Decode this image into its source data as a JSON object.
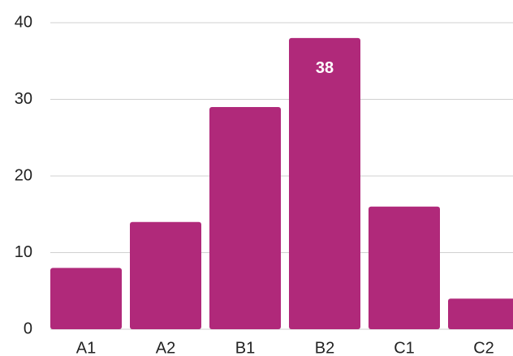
{
  "chart_data": {
    "type": "bar",
    "categories": [
      "A1",
      "A2",
      "B1",
      "B2",
      "C1",
      "C2"
    ],
    "values": [
      8,
      14,
      29,
      38,
      16,
      4
    ],
    "value_labels": [
      null,
      null,
      null,
      "38",
      null,
      null
    ],
    "color": "#b0297a",
    "ylim": [
      0,
      40
    ],
    "yticks": [
      0,
      10,
      20,
      30,
      40
    ],
    "grid": true
  }
}
